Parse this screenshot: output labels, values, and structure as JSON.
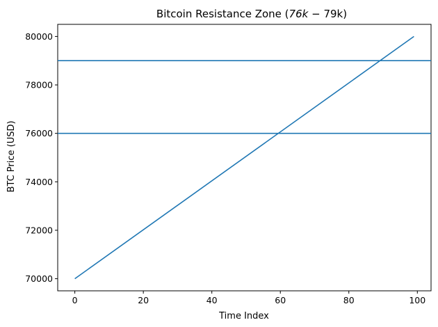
{
  "chart_data": {
    "type": "line",
    "title": "Bitcoin Resistance Zone ($76k-$79k)",
    "title_display": {
      "part1": "Bitcoin Resistance Zone (",
      "part2": "76k",
      "part3": " − ",
      "part4": "79k)"
    },
    "xlabel": "Time Index",
    "ylabel": "BTC Price (USD)",
    "xlim": [
      -5,
      104
    ],
    "ylim": [
      69500,
      80500
    ],
    "xticks": [
      0,
      20,
      40,
      60,
      80,
      100
    ],
    "yticks": [
      70000,
      72000,
      74000,
      76000,
      78000,
      80000
    ],
    "grid": false,
    "series": [
      {
        "x": [
          0,
          99
        ],
        "y": [
          70000,
          80000
        ],
        "color": "#1f77b4"
      }
    ],
    "hlines": [
      {
        "y": 76000,
        "color": "#1f77b4"
      },
      {
        "y": 79000,
        "color": "#1f77b4"
      }
    ]
  }
}
